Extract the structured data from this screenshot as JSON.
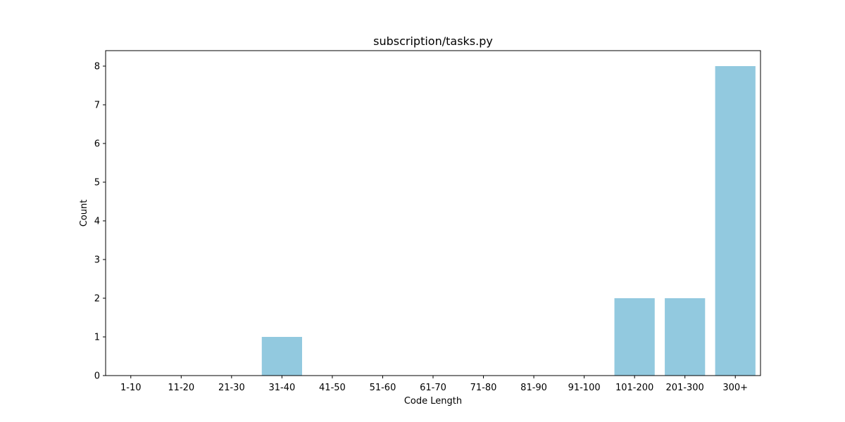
{
  "chart_data": {
    "type": "bar",
    "title": "subscription/tasks.py",
    "xlabel": "Code Length",
    "ylabel": "Count",
    "categories": [
      "1-10",
      "11-20",
      "21-30",
      "31-40",
      "41-50",
      "51-60",
      "61-70",
      "71-80",
      "81-90",
      "91-100",
      "101-200",
      "201-300",
      "300+"
    ],
    "values": [
      0,
      0,
      0,
      1,
      0,
      0,
      0,
      0,
      0,
      0,
      2,
      2,
      8
    ],
    "ylim": [
      0,
      8.4
    ],
    "yticks": [
      0,
      1,
      2,
      3,
      4,
      5,
      6,
      7,
      8
    ],
    "grid": false,
    "legend": "none",
    "bar_color": "#92c9df"
  }
}
